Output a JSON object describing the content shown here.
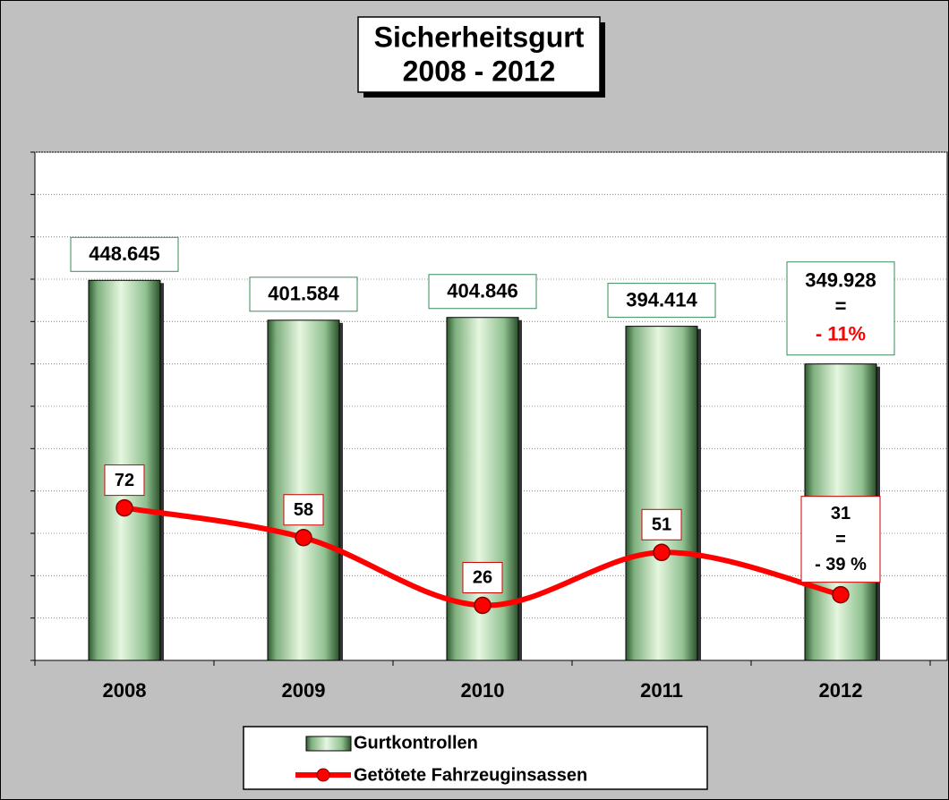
{
  "chart_data": {
    "type": "bar",
    "title": "Sicherheitsgurt",
    "subtitle": "2008 - 2012",
    "categories": [
      "2008",
      "2009",
      "2010",
      "2011",
      "2012"
    ],
    "ylim": [
      0,
      600000
    ],
    "yticks": [
      0,
      50000,
      100000,
      150000,
      200000,
      250000,
      300000,
      350000,
      400000,
      450000,
      500000,
      550000,
      600000
    ],
    "y2lim": [
      0,
      240
    ],
    "y2ticks": [
      0,
      20,
      40,
      60,
      80,
      100,
      120,
      140,
      160,
      180,
      200,
      220,
      240
    ],
    "grid": true,
    "legend": "bottom",
    "series": [
      {
        "name": "Gurtkontrollen",
        "type": "bar",
        "color": "#99cc99",
        "values": [
          448645,
          401584,
          404846,
          394414,
          349928
        ],
        "value_labels": [
          "448.645",
          "401.584",
          "404.846",
          "394.414",
          "349.928"
        ]
      },
      {
        "name": "Getötete Fahrzeuginsassen",
        "type": "line",
        "axis": "y2",
        "color": "#ff0000",
        "values": [
          72,
          58,
          26,
          51,
          31
        ]
      }
    ],
    "annotations": [
      "=",
      "- 11%",
      "=",
      "- 39 %"
    ]
  }
}
